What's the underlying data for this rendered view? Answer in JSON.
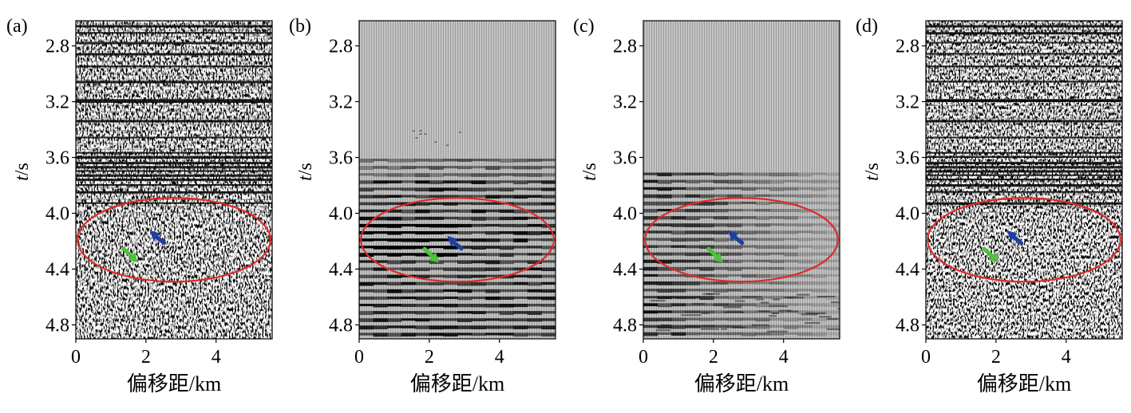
{
  "figure": {
    "colors": {
      "ellipse": "#dd2a2a",
      "blue_arrow": "#1f3fa0",
      "green_arrow": "#4cc23a",
      "gray_background": "#b7b7b7"
    }
  },
  "chart_data": [
    {
      "type": "heatmap",
      "panel": "(a)",
      "texture": "noisy seismic section with strong reflections",
      "xlabel": "偏移距/km",
      "ylabel_italic": "t",
      "ylabel_unit": "/s",
      "xlim": [
        0,
        5.6
      ],
      "ylim": [
        2.62,
        4.9
      ],
      "y_inverted": true,
      "x_ticks": [
        0,
        2,
        4
      ],
      "y_ticks": [
        2.8,
        3.2,
        3.6,
        4.0,
        4.4,
        4.8
      ],
      "ellipse": {
        "center_offset_km": 2.8,
        "center_t_s": 4.19,
        "half_width_km": 2.75,
        "half_height_s": 0.3
      },
      "arrows": [
        {
          "color": "blue",
          "offset_km": 2.2,
          "t_s": 4.15
        },
        {
          "color": "green",
          "offset_km": 1.5,
          "t_s": 4.29
        }
      ]
    },
    {
      "type": "heatmap",
      "panel": "(b)",
      "texture": "clean horizontal reflections below 3.62 s on gray background",
      "xlabel": "偏移距/km",
      "ylabel_italic": "t",
      "ylabel_unit": "/s",
      "xlim": [
        0,
        5.6
      ],
      "ylim": [
        2.62,
        4.9
      ],
      "y_inverted": true,
      "x_ticks": [
        0,
        2,
        4
      ],
      "y_ticks": [
        2.8,
        3.2,
        3.6,
        4.0,
        4.4,
        4.8
      ],
      "ellipse": {
        "center_offset_km": 2.8,
        "center_t_s": 4.19,
        "half_width_km": 2.75,
        "half_height_s": 0.3
      },
      "arrows": [
        {
          "color": "blue",
          "offset_km": 2.6,
          "t_s": 4.19
        },
        {
          "color": "green",
          "offset_km": 2.0,
          "t_s": 4.29
        }
      ]
    },
    {
      "type": "heatmap",
      "panel": "(c)",
      "texture": "horizontal reflections below 3.72 s fading to the right on gray background",
      "xlabel": "偏移距/km",
      "ylabel_italic": "t",
      "ylabel_unit": "/s",
      "xlim": [
        0,
        5.6
      ],
      "ylim": [
        2.62,
        4.9
      ],
      "y_inverted": true,
      "x_ticks": [
        0,
        2,
        4
      ],
      "y_ticks": [
        2.8,
        3.2,
        3.6,
        4.0,
        4.4,
        4.8
      ],
      "ellipse": {
        "center_offset_km": 2.8,
        "center_t_s": 4.19,
        "half_width_km": 2.75,
        "half_height_s": 0.3
      },
      "arrows": [
        {
          "color": "blue",
          "offset_km": 2.5,
          "t_s": 4.15
        },
        {
          "color": "green",
          "offset_km": 2.0,
          "t_s": 4.29
        }
      ]
    },
    {
      "type": "heatmap",
      "panel": "(d)",
      "texture": "noisy seismic section (residual) with strong reflections",
      "xlabel": "偏移距/km",
      "ylabel_italic": "t",
      "ylabel_unit": "/s",
      "xlim": [
        0,
        5.6
      ],
      "ylim": [
        2.62,
        4.9
      ],
      "y_inverted": true,
      "x_ticks": [
        0,
        2,
        4
      ],
      "y_ticks": [
        2.8,
        3.2,
        3.6,
        4.0,
        4.4,
        4.8
      ],
      "ellipse": {
        "center_offset_km": 2.8,
        "center_t_s": 4.19,
        "half_width_km": 2.75,
        "half_height_s": 0.3
      },
      "arrows": [
        {
          "color": "blue",
          "offset_km": 2.4,
          "t_s": 4.15
        },
        {
          "color": "green",
          "offset_km": 1.8,
          "t_s": 4.29
        }
      ]
    }
  ]
}
